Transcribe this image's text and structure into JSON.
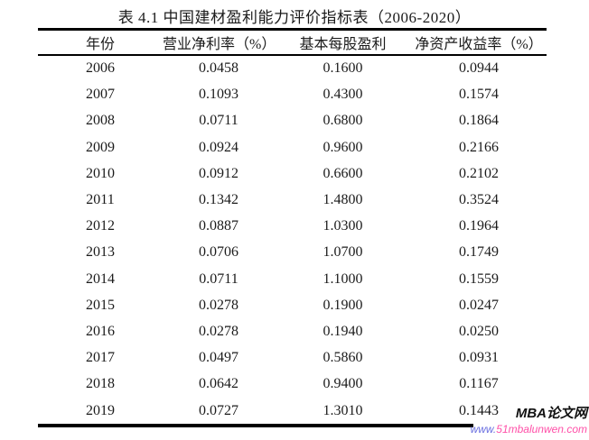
{
  "page": {
    "background_color": "#ffffff",
    "text_color": "#1b1b1b",
    "rule_color": "#000000"
  },
  "title": "表 4.1 中国建材盈利能力评价指标表（2006-2020）",
  "table": {
    "columns": [
      "年份",
      "营业净利率（%）",
      "基本每股盈利",
      "净资产收益率（%）"
    ],
    "rows": [
      [
        "2006",
        "0.0458",
        "0.1600",
        "0.0944"
      ],
      [
        "2007",
        "0.1093",
        "0.4300",
        "0.1574"
      ],
      [
        "2008",
        "0.0711",
        "0.6800",
        "0.1864"
      ],
      [
        "2009",
        "0.0924",
        "0.9600",
        "0.2166"
      ],
      [
        "2010",
        "0.0912",
        "0.6600",
        "0.2102"
      ],
      [
        "2011",
        "0.1342",
        "1.4800",
        "0.3524"
      ],
      [
        "2012",
        "0.0887",
        "1.0300",
        "0.1964"
      ],
      [
        "2013",
        "0.0706",
        "1.0700",
        "0.1749"
      ],
      [
        "2014",
        "0.0711",
        "1.1000",
        "0.1559"
      ],
      [
        "2015",
        "0.0278",
        "0.1900",
        "0.0247"
      ],
      [
        "2016",
        "0.0278",
        "0.1940",
        "0.0250"
      ],
      [
        "2017",
        "0.0497",
        "0.5860",
        "0.0931"
      ],
      [
        "2018",
        "0.0642",
        "0.9400",
        "0.1167"
      ],
      [
        "2019",
        "0.0727",
        "1.3010",
        "0.1443"
      ]
    ]
  },
  "watermark": {
    "brand": "MBA论文网",
    "brand_color": "#111111",
    "url_prefix": "www.",
    "url_rest": "51mbalunwen.com",
    "url_prefix_color": "#6a6fe0",
    "url_rest_color": "#ff50a8"
  }
}
